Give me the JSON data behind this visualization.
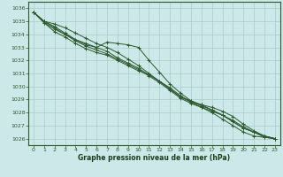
{
  "background_color": "#cce8e8",
  "plot_bg_color": "#cce8e8",
  "grid_color": "#aacccc",
  "line_color": "#2d5a2d",
  "xlabel": "Graphe pression niveau de la mer (hPa)",
  "xlabel_color": "#1a3d1a",
  "xlim": [
    -0.5,
    23.5
  ],
  "ylim": [
    1025.5,
    1036.5
  ],
  "yticks": [
    1026,
    1027,
    1028,
    1029,
    1030,
    1031,
    1032,
    1033,
    1034,
    1035,
    1036
  ],
  "xticks": [
    0,
    1,
    2,
    3,
    4,
    5,
    6,
    7,
    8,
    9,
    10,
    11,
    12,
    13,
    14,
    15,
    16,
    17,
    18,
    19,
    20,
    21,
    22,
    23
  ],
  "series": [
    [
      1035.7,
      1035.0,
      1034.8,
      1034.5,
      1034.1,
      1033.7,
      1033.3,
      1033.0,
      1032.6,
      1032.1,
      1031.6,
      1031.0,
      1030.4,
      1029.8,
      1029.2,
      1028.9,
      1028.6,
      1028.2,
      1027.8,
      1027.3,
      1026.8,
      1026.5,
      1026.2,
      1026.0
    ],
    [
      1035.7,
      1035.0,
      1034.6,
      1034.1,
      1033.6,
      1033.2,
      1033.0,
      1033.4,
      1033.3,
      1033.2,
      1033.0,
      1032.0,
      1031.1,
      1030.2,
      1029.5,
      1028.9,
      1028.5,
      1028.2,
      1027.8,
      1027.3,
      1026.8,
      1026.5,
      1026.2,
      1026.0
    ],
    [
      1035.7,
      1034.9,
      1034.2,
      1033.8,
      1033.3,
      1032.9,
      1032.6,
      1032.4,
      1032.0,
      1031.6,
      1031.2,
      1030.9,
      1030.4,
      1029.9,
      1029.3,
      1028.8,
      1028.4,
      1028.0,
      1027.5,
      1027.0,
      1026.5,
      1026.2,
      1026.1,
      1026.0
    ],
    [
      1035.7,
      1034.9,
      1034.4,
      1034.0,
      1033.6,
      1033.3,
      1033.0,
      1032.7,
      1032.2,
      1031.8,
      1031.4,
      1030.9,
      1030.4,
      1029.8,
      1029.2,
      1028.8,
      1028.6,
      1028.4,
      1028.1,
      1027.7,
      1027.1,
      1026.6,
      1026.2,
      1026.0
    ],
    [
      1035.7,
      1035.0,
      1034.5,
      1034.0,
      1033.5,
      1033.1,
      1032.8,
      1032.5,
      1032.1,
      1031.7,
      1031.3,
      1030.8,
      1030.3,
      1029.7,
      1029.1,
      1028.7,
      1028.4,
      1028.1,
      1027.8,
      1027.4,
      1026.9,
      1026.5,
      1026.1,
      1026.0
    ]
  ]
}
